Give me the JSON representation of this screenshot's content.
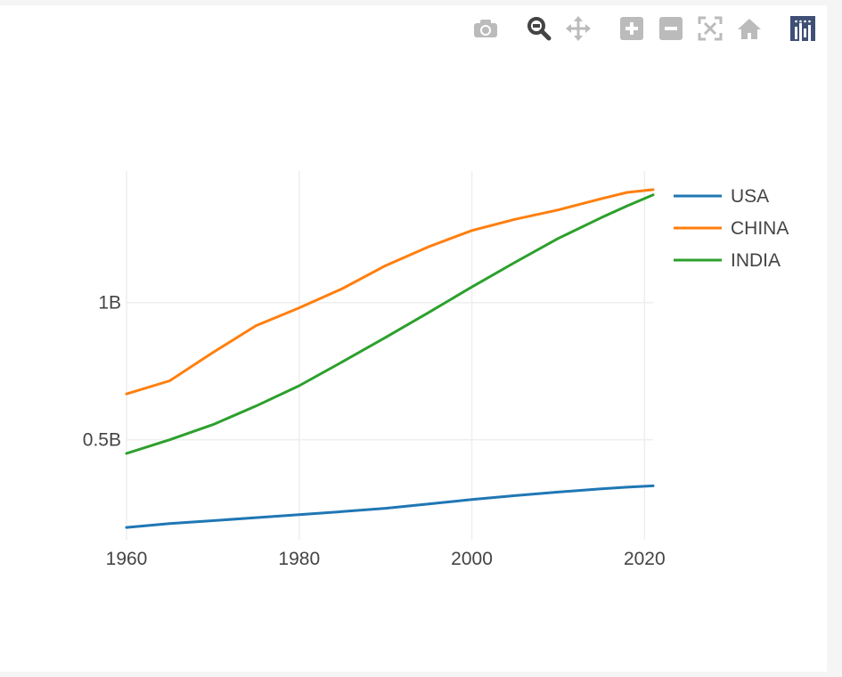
{
  "modebar": {
    "buttons": [
      {
        "name": "camera-icon",
        "title": "Download plot as a png"
      },
      {
        "name": "zoom-icon",
        "title": "Zoom"
      },
      {
        "name": "pan-icon",
        "title": "Pan"
      },
      {
        "name": "zoom-in-icon",
        "title": "Zoom in"
      },
      {
        "name": "zoom-out-icon",
        "title": "Zoom out"
      },
      {
        "name": "autoscale-icon",
        "title": "Autoscale"
      },
      {
        "name": "reset-axes-icon",
        "title": "Reset axes"
      },
      {
        "name": "plotly-logo-icon",
        "title": "Produced with Plotly"
      }
    ],
    "active_color": "#444444",
    "inactive_color": "#bbbbbb",
    "logo_color": "#3f4f75"
  },
  "chart_data": {
    "type": "line",
    "title": "",
    "xlabel": "",
    "ylabel": "",
    "xlim": [
      1960,
      2021
    ],
    "ylim": [
      135000000,
      1480000000
    ],
    "grid": true,
    "legend_position": "top-right",
    "x_ticks": [
      {
        "value": 1960,
        "label": "1960"
      },
      {
        "value": 1980,
        "label": "1980"
      },
      {
        "value": 2000,
        "label": "2000"
      },
      {
        "value": 2020,
        "label": "2020"
      }
    ],
    "y_ticks": [
      {
        "value": 500000000,
        "label": "0.5B"
      },
      {
        "value": 1000000000,
        "label": "1B"
      }
    ],
    "x": [
      1960,
      1965,
      1970,
      1975,
      1980,
      1985,
      1990,
      1995,
      2000,
      2005,
      2010,
      2015,
      2018,
      2021
    ],
    "series": [
      {
        "name": "USA",
        "color": "#1f77b4",
        "values": [
          180000000,
          194000000,
          205000000,
          216000000,
          227000000,
          238000000,
          250000000,
          266000000,
          282000000,
          296000000,
          309000000,
          321000000,
          327000000,
          332000000
        ]
      },
      {
        "name": "CHINA",
        "color": "#ff7f0e",
        "values": [
          667000000,
          715000000,
          818000000,
          916000000,
          981000000,
          1051000000,
          1135000000,
          1204000000,
          1263000000,
          1304000000,
          1338000000,
          1379000000,
          1402000000,
          1412000000
        ]
      },
      {
        "name": "INDIA",
        "color": "#2ca02c",
        "values": [
          450000000,
          500000000,
          555000000,
          623000000,
          697000000,
          784000000,
          873000000,
          964000000,
          1057000000,
          1147000000,
          1234000000,
          1310000000,
          1353000000,
          1393000000
        ]
      }
    ]
  }
}
